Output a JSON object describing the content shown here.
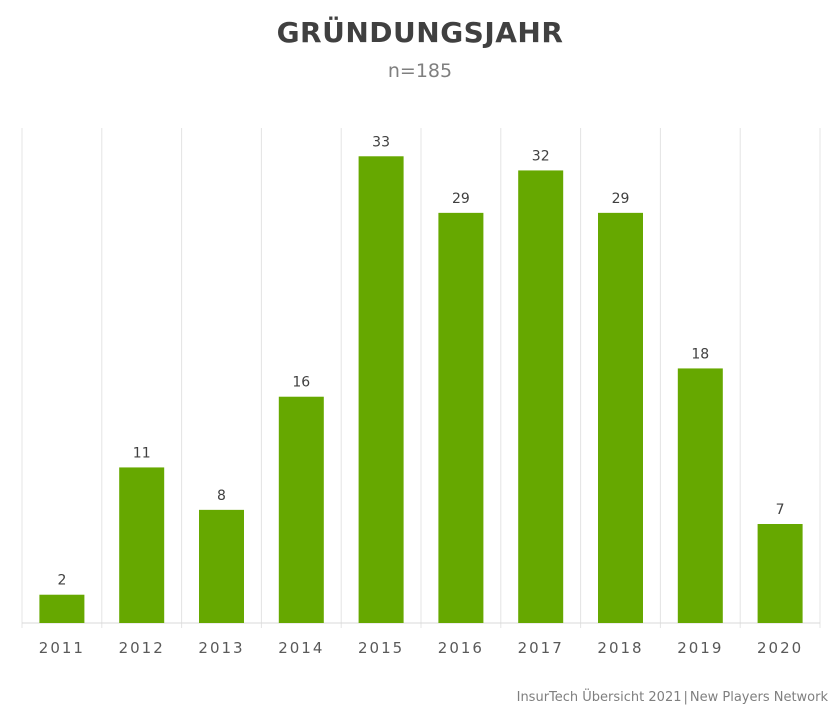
{
  "chart_data": {
    "type": "bar",
    "title": "GRÜNDUNGSJAHR",
    "subtitle": "n=185",
    "categories": [
      "2011",
      "2012",
      "2013",
      "2014",
      "2015",
      "2016",
      "2017",
      "2018",
      "2019",
      "2020"
    ],
    "values": [
      2,
      11,
      8,
      16,
      33,
      29,
      32,
      29,
      18,
      7
    ],
    "ylim": [
      0,
      35
    ],
    "grid": "vertical separators",
    "bar_color": "#66a800",
    "legend": "none"
  },
  "footer": {
    "left": "InsurTech Übersicht 2021",
    "separator": "|",
    "right": "New Players Network"
  }
}
